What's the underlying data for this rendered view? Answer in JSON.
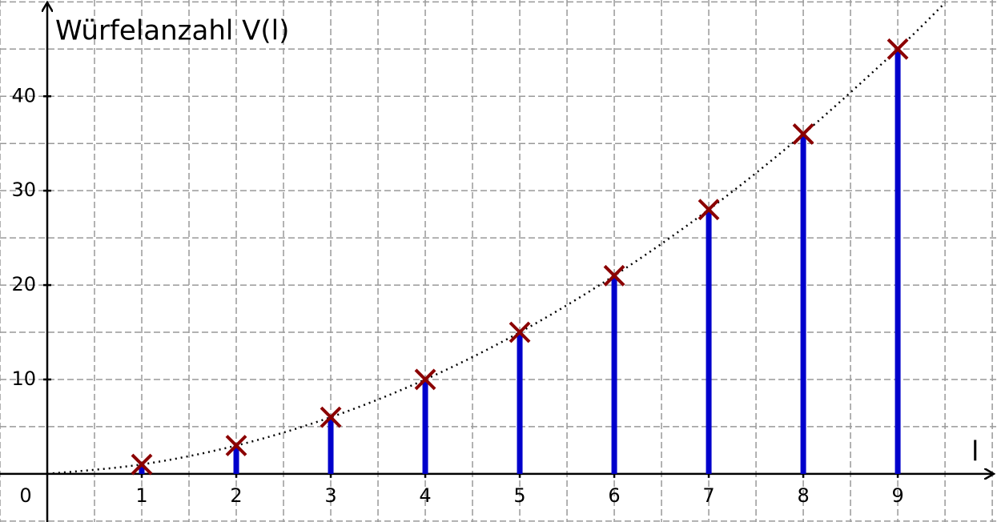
{
  "chart_data": {
    "type": "stem",
    "y_label": "Würfelanzahl V(l)",
    "x_label": "l",
    "origin_label": "0",
    "x": [
      1,
      2,
      3,
      4,
      5,
      6,
      7,
      8,
      9
    ],
    "values": [
      1,
      3,
      6,
      10,
      15,
      21,
      28,
      36,
      45
    ],
    "color": "#0000cc",
    "marker_color": "#8b0000",
    "curve": {
      "x": [
        0,
        1,
        2,
        3,
        4,
        5,
        6,
        7,
        8,
        9,
        9.5
      ],
      "values": [
        0,
        1,
        3,
        6,
        10,
        15,
        21,
        28,
        36,
        45,
        49.9
      ]
    },
    "xlim": [
      -0.5,
      10.05
    ],
    "ylim": [
      -5.1,
      50.2
    ],
    "xticks": [
      1,
      2,
      3,
      4,
      5,
      6,
      7,
      8,
      9
    ],
    "yticks": [
      10,
      20,
      30,
      40
    ],
    "grid": true,
    "xgrid": [
      -0.5,
      0.5,
      1,
      1.5,
      2,
      2.5,
      3,
      3.5,
      4,
      4.5,
      5,
      5.5,
      6,
      6.5,
      7,
      7.5,
      8,
      8.5,
      9,
      9.5,
      10
    ],
    "ygrid": [
      -5,
      5,
      10,
      15,
      20,
      25,
      30,
      35,
      40,
      45,
      50
    ]
  }
}
